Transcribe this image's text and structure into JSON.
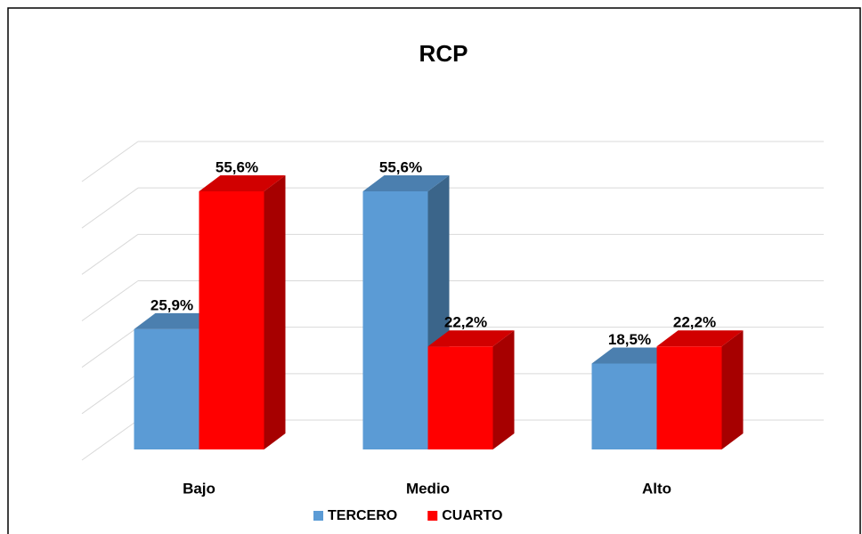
{
  "chart_data": {
    "type": "bar3d",
    "title": "RCP",
    "categories": [
      "Bajo",
      "Medio",
      "Alto"
    ],
    "series": [
      {
        "name": "TERCERO",
        "color": "#5b9bd5",
        "values": [
          25.9,
          55.6,
          18.5
        ],
        "value_labels": [
          "25,9%",
          "55,6%",
          "18,5%"
        ]
      },
      {
        "name": "CUARTO",
        "color": "#ff0000",
        "values": [
          55.6,
          22.2,
          22.2
        ],
        "value_labels": [
          "55,6%",
          "22,2%",
          "22,2%"
        ]
      }
    ],
    "ylim": [
      0,
      60
    ],
    "yticks": [
      0,
      10,
      20,
      30,
      40,
      50,
      60
    ],
    "grid": true,
    "legend": "bottom"
  }
}
